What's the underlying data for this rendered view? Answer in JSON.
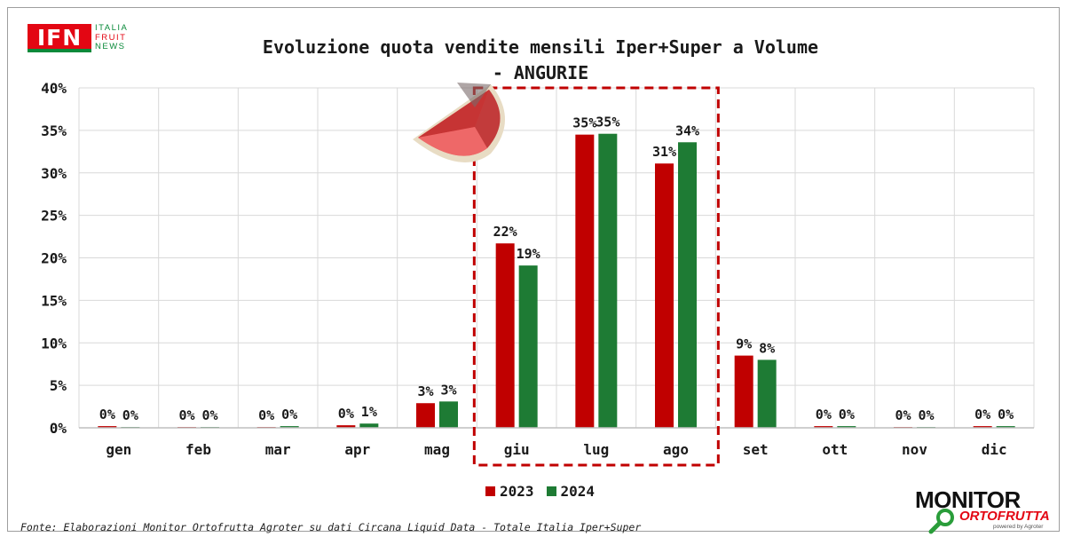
{
  "header": {
    "logo": {
      "initials": "IFN",
      "words": [
        "ITALIA",
        "FRUIT",
        "NEWS"
      ]
    },
    "title_line1": "Evoluzione quota vendite mensili Iper+Super a Volume",
    "title_line2": "- ANGURIE"
  },
  "footer": {
    "source": "Fonte: Elaborazioni Monitor Ortofrutta Agroter su dati Circana Liquid Data - Totale Italia Iper+Super",
    "monitor_logo": {
      "line1": "MONITOR",
      "line2": "ORTOFRUTTA",
      "sub": "powered by Agroter"
    }
  },
  "chart_data": {
    "type": "bar",
    "title": "Evoluzione quota vendite mensili Iper+Super a Volume - ANGURIE",
    "xlabel": "",
    "ylabel": "",
    "categories": [
      "gen",
      "feb",
      "mar",
      "apr",
      "mag",
      "giu",
      "lug",
      "ago",
      "set",
      "ott",
      "nov",
      "dic"
    ],
    "series": [
      {
        "name": "2023",
        "color": "#c00000",
        "values": [
          0.2,
          0.1,
          0.1,
          0.3,
          2.9,
          21.7,
          34.5,
          31.1,
          8.5,
          0.2,
          0.1,
          0.2
        ],
        "labels": [
          "0%",
          "0%",
          "0%",
          "0%",
          "3%",
          "22%",
          "35%",
          "31%",
          "9%",
          "0%",
          "0%",
          "0%"
        ]
      },
      {
        "name": "2024",
        "color": "#1e7b34",
        "values": [
          0.1,
          0.1,
          0.2,
          0.5,
          3.1,
          19.1,
          34.6,
          33.6,
          8.0,
          0.2,
          0.1,
          0.2
        ],
        "labels": [
          "0%",
          "0%",
          "0%",
          "1%",
          "3%",
          "19%",
          "35%",
          "34%",
          "8%",
          "0%",
          "0%",
          "0%"
        ]
      }
    ],
    "ylim": [
      0,
      40
    ],
    "yticks": [
      0,
      5,
      10,
      15,
      20,
      25,
      30,
      35,
      40
    ],
    "ytick_labels": [
      "0%",
      "5%",
      "10%",
      "15%",
      "20%",
      "25%",
      "30%",
      "35%",
      "40%"
    ],
    "grid": true,
    "legend_position": "bottom-center",
    "highlight": {
      "categories": [
        "giu",
        "lug",
        "ago"
      ],
      "style": "dashed",
      "color": "#c00000"
    },
    "decoration_icon": "watermelon-slice-icon"
  }
}
